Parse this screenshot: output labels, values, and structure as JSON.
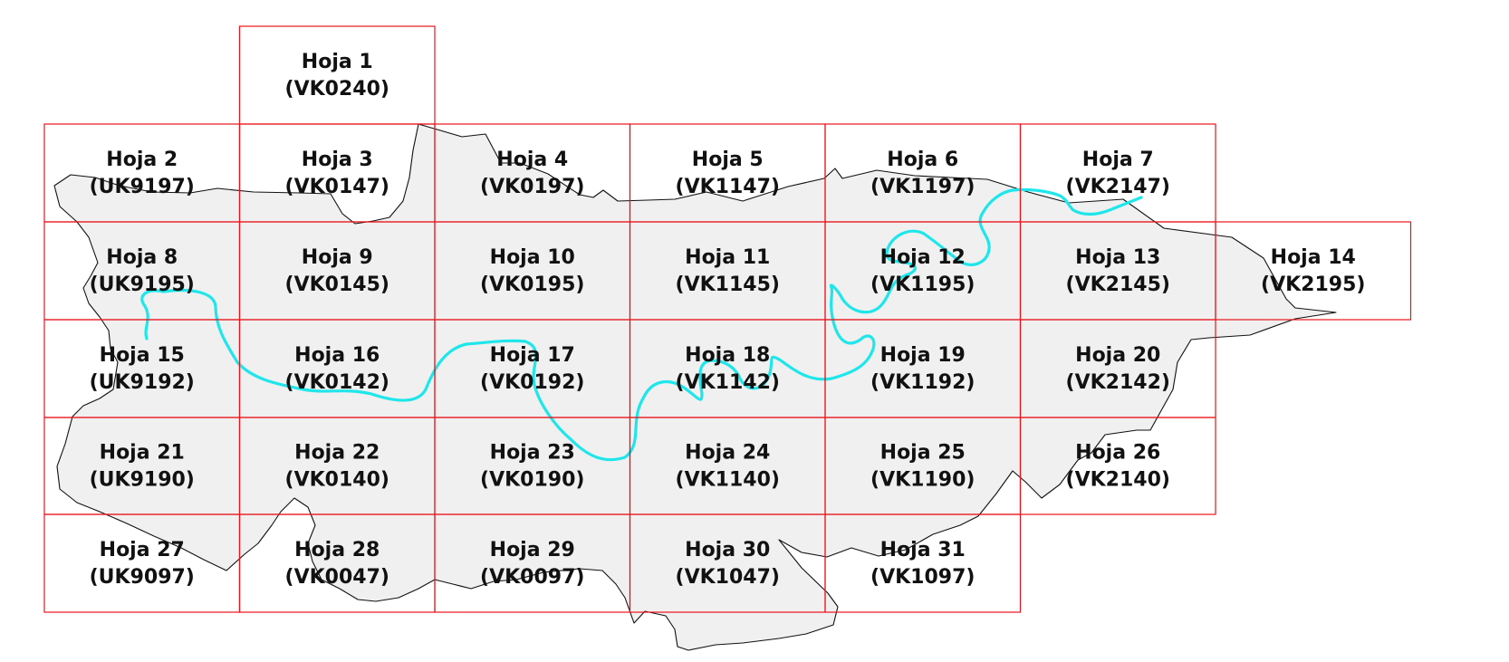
{
  "map": {
    "colors": {
      "grid": "#e8141c",
      "territory_fill": "#f0f0f0",
      "territory_border": "#111111",
      "river": "#1ee6ea",
      "label": "#111111"
    },
    "sheets": [
      {
        "name": "Hoja 1",
        "code": "(VK0240)"
      },
      {
        "name": "Hoja 2",
        "code": "(UK9197)"
      },
      {
        "name": "Hoja 3",
        "code": "(VK0147)"
      },
      {
        "name": "Hoja 4",
        "code": "(VK0197)"
      },
      {
        "name": "Hoja 5",
        "code": "(VK1147)"
      },
      {
        "name": "Hoja 6",
        "code": "(VK1197)"
      },
      {
        "name": "Hoja 7",
        "code": "(VK2147)"
      },
      {
        "name": "Hoja 8",
        "code": "(UK9195)"
      },
      {
        "name": "Hoja 9",
        "code": "(VK0145)"
      },
      {
        "name": "Hoja 10",
        "code": "(VK0195)"
      },
      {
        "name": "Hoja 11",
        "code": "(VK1145)"
      },
      {
        "name": "Hoja 12",
        "code": "(VK1195)"
      },
      {
        "name": "Hoja 13",
        "code": "(VK2145)"
      },
      {
        "name": "Hoja 14",
        "code": "(VK2195)"
      },
      {
        "name": "Hoja 15",
        "code": "(UK9192)"
      },
      {
        "name": "Hoja 16",
        "code": "(VK0142)"
      },
      {
        "name": "Hoja 17",
        "code": "(VK0192)"
      },
      {
        "name": "Hoja 18",
        "code": "(VK1142)"
      },
      {
        "name": "Hoja 19",
        "code": "(VK1192)"
      },
      {
        "name": "Hoja 20",
        "code": "(VK2142)"
      },
      {
        "name": "Hoja 21",
        "code": "(UK9190)"
      },
      {
        "name": "Hoja 22",
        "code": "(VK0140)"
      },
      {
        "name": "Hoja 23",
        "code": "(VK0190)"
      },
      {
        "name": "Hoja 24",
        "code": "(VK1140)"
      },
      {
        "name": "Hoja 25",
        "code": "(VK1190)"
      },
      {
        "name": "Hoja 26",
        "code": "(VK2140)"
      },
      {
        "name": "Hoja 27",
        "code": "(UK9097)"
      },
      {
        "name": "Hoja 28",
        "code": "(VK0047)"
      },
      {
        "name": "Hoja 29",
        "code": "(VK0097)"
      },
      {
        "name": "Hoja 30",
        "code": "(VK1047)"
      },
      {
        "name": "Hoja 31",
        "code": "(VK1097)"
      }
    ]
  }
}
